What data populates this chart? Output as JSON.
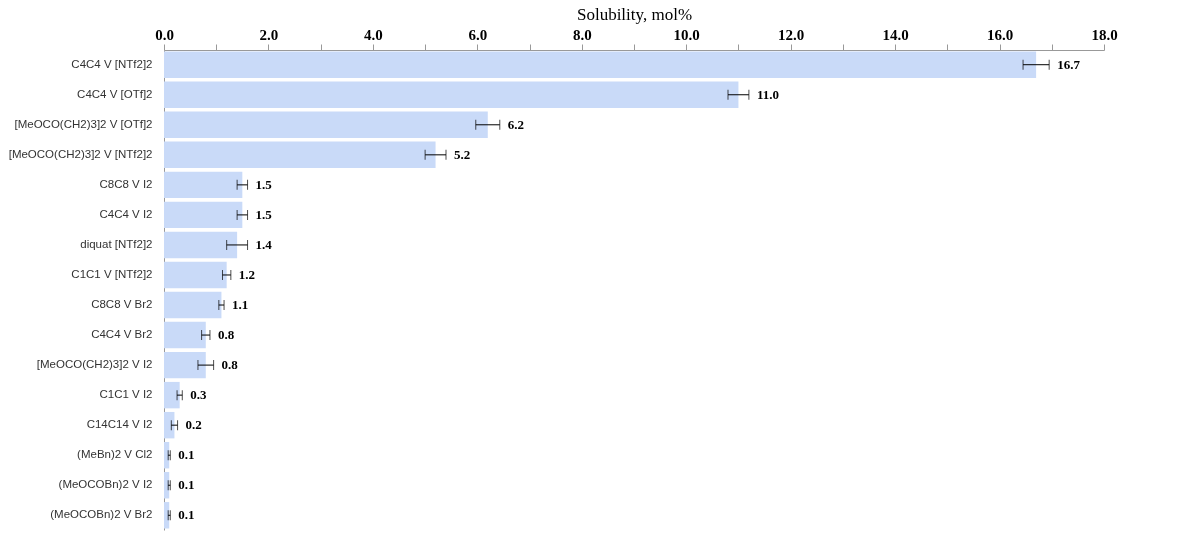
{
  "chart_data": {
    "type": "bar",
    "orientation": "horizontal",
    "xlabel": "Solubility, mol%",
    "categories": [
      "C4C4 V [NTf2]2",
      "C4C4 V [OTf]2",
      "[MeOCO(CH2)3]2  V [OTf]2",
      "[MeOCO(CH2)3]2  V [NTf2]2",
      "C8C8 V I2",
      "C4C4 V I2",
      "diquat [NTf2]2",
      "C1C1 V [NTf2]2",
      "C8C8 V Br2",
      "C4C4 V Br2",
      "[MeOCO(CH2)3]2 V I2",
      "C1C1 V I2",
      "C14C14 V I2",
      "(MeBn)2 V Cl2",
      "(MeOCOBn)2 V I2",
      "(MeOCOBn)2 V Br2"
    ],
    "values": [
      16.7,
      11.0,
      6.2,
      5.2,
      1.5,
      1.5,
      1.4,
      1.2,
      1.1,
      0.8,
      0.8,
      0.3,
      0.2,
      0.1,
      0.1,
      0.1
    ],
    "errors": [
      0.25,
      0.2,
      0.23,
      0.2,
      0.1,
      0.1,
      0.2,
      0.08,
      0.05,
      0.08,
      0.15,
      0.05,
      0.06,
      0.02,
      0.02,
      0.02
    ],
    "value_labels": [
      "16.7",
      "11.0",
      "6.2",
      "5.2",
      "1.5",
      "1.5",
      "1.4",
      "1.2",
      "1.1",
      "0.8",
      "0.8",
      "0.3",
      "0.2",
      "0.1",
      "0.1",
      "0.1"
    ],
    "color": "#c9daf8",
    "grid": false,
    "xlim": [
      0,
      18
    ],
    "xticks": [
      {
        "value": 0,
        "label": "0.0"
      },
      {
        "value": 1,
        "label": null
      },
      {
        "value": 2,
        "label": "2.0"
      },
      {
        "value": 3,
        "label": null
      },
      {
        "value": 4,
        "label": "4.0"
      },
      {
        "value": 5,
        "label": null
      },
      {
        "value": 6,
        "label": "6.0"
      },
      {
        "value": 7,
        "label": null
      },
      {
        "value": 8,
        "label": "8.0"
      },
      {
        "value": 9,
        "label": null
      },
      {
        "value": 10,
        "label": "10.0"
      },
      {
        "value": 11,
        "label": null
      },
      {
        "value": 12,
        "label": "12.0"
      },
      {
        "value": 13,
        "label": null
      },
      {
        "value": 14,
        "label": "14.0"
      },
      {
        "value": 15,
        "label": null
      },
      {
        "value": 16,
        "label": "16.0"
      },
      {
        "value": 17,
        "label": null
      },
      {
        "value": 18,
        "label": "18.0"
      }
    ]
  }
}
